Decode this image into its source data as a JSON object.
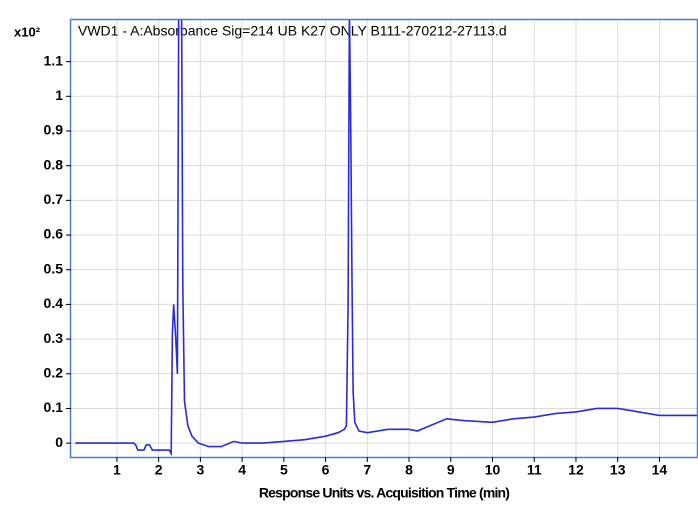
{
  "chart_data": {
    "type": "line",
    "title": "VWD1 - A:Absorbance Sig=214 UB K27 ONLY B111-270212-27113.d",
    "x_label": "Response Units vs. Acquisition Time (min)",
    "y_multiplier": "x10²",
    "x": [
      0,
      1.4,
      1.45,
      1.5,
      1.55,
      1.65,
      1.7,
      1.78,
      1.85,
      2.25,
      2.3,
      2.33,
      2.36,
      2.38,
      2.41,
      2.45,
      2.48,
      2.5,
      2.55,
      2.58,
      2.62,
      2.7,
      2.8,
      2.95,
      3.2,
      3.5,
      3.8,
      4.0,
      4.5,
      5.0,
      5.5,
      6.0,
      6.3,
      6.45,
      6.5,
      6.54,
      6.57,
      6.6,
      6.63,
      6.66,
      6.7,
      6.8,
      7.0,
      7.5,
      8.0,
      8.2,
      8.5,
      8.9,
      9.3,
      10.0,
      10.5,
      11.0,
      11.5,
      12.0,
      12.5,
      13.0,
      13.5,
      14.0,
      14.9
    ],
    "values": [
      0,
      0,
      -0.005,
      -0.02,
      -0.02,
      -0.02,
      -0.005,
      -0.005,
      -0.02,
      -0.02,
      -0.03,
      0.32,
      0.4,
      0.36,
      0.3,
      0.2,
      1.25,
      1.25,
      1.25,
      0.45,
      0.12,
      0.05,
      0.02,
      0.0,
      -0.01,
      -0.01,
      0.005,
      0.0,
      0.0,
      0.005,
      0.01,
      0.02,
      0.03,
      0.04,
      0.05,
      0.4,
      1.25,
      0.96,
      0.5,
      0.15,
      0.06,
      0.035,
      0.03,
      0.04,
      0.04,
      0.035,
      0.05,
      0.07,
      0.065,
      0.06,
      0.07,
      0.075,
      0.085,
      0.09,
      0.1,
      0.1,
      0.09,
      0.08,
      0.08
    ],
    "color": "#2b2bd6",
    "xlim": [
      -0.1,
      14.9
    ],
    "ylim": [
      -0.04,
      1.22
    ],
    "xticks": [
      1,
      2,
      3,
      4,
      5,
      6,
      7,
      8,
      9,
      10,
      11,
      12,
      13,
      14
    ],
    "yticks": [
      0,
      0.1,
      0.2,
      0.3,
      0.4,
      0.5,
      0.6,
      0.7,
      0.8,
      0.9,
      1,
      1.1
    ],
    "grid": true
  }
}
